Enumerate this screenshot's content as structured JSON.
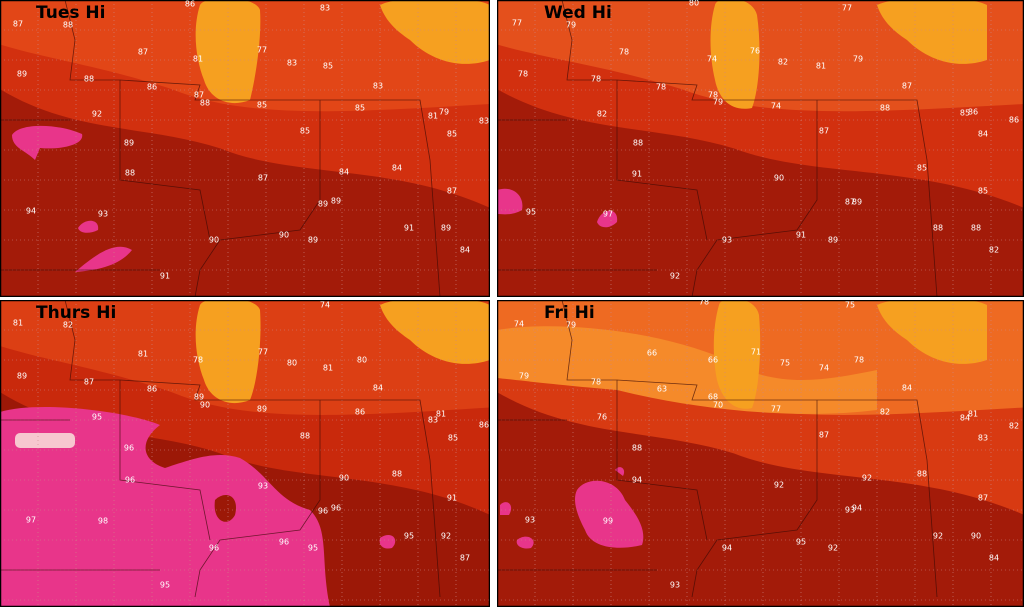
{
  "panels": [
    {
      "title": "Tues Hi",
      "labels": [
        "88",
        "87",
        "86",
        "83",
        "87",
        "77",
        "83",
        "85",
        "89",
        "88",
        "86",
        "81",
        "87",
        "88",
        "85",
        "85",
        "83",
        "92",
        "81",
        "79",
        "83",
        "85",
        "85",
        "89",
        "88",
        "84",
        "84",
        "87",
        "87",
        "94",
        "93",
        "89",
        "89",
        "90",
        "90",
        "89",
        "91",
        "89",
        "84",
        "91"
      ]
    },
    {
      "title": "Wed Hi",
      "labels": [
        "77",
        "79",
        "80",
        "77",
        "78",
        "74",
        "76",
        "82",
        "81",
        "79",
        "78",
        "78",
        "78",
        "78",
        "79",
        "74",
        "87",
        "88",
        "82",
        "85",
        "86",
        "86",
        "84",
        "87",
        "88",
        "85",
        "90",
        "91",
        "87",
        "89",
        "85",
        "95",
        "97",
        "93",
        "91",
        "89",
        "88",
        "88",
        "82",
        "92"
      ]
    },
    {
      "title": "Thurs Hi",
      "labels": [
        "81",
        "82",
        "74",
        "81",
        "77",
        "78",
        "80",
        "81",
        "80",
        "89",
        "87",
        "86",
        "84",
        "89",
        "90",
        "89",
        "86",
        "95",
        "83",
        "81",
        "85",
        "86",
        "88",
        "96",
        "96",
        "90",
        "88",
        "93",
        "91",
        "97",
        "98",
        "96",
        "96",
        "95",
        "92",
        "96",
        "96",
        "95",
        "87",
        "95"
      ]
    },
    {
      "title": "Fri Hi",
      "labels": [
        "74",
        "79",
        "78",
        "75",
        "66",
        "66",
        "71",
        "75",
        "74",
        "78",
        "79",
        "78",
        "63",
        "68",
        "70",
        "77",
        "84",
        "82",
        "76",
        "84",
        "81",
        "82",
        "83",
        "87",
        "88",
        "88",
        "92",
        "94",
        "92",
        "93",
        "99",
        "94",
        "93",
        "87",
        "94",
        "95",
        "92",
        "92",
        "90",
        "84",
        "93"
      ]
    }
  ]
}
